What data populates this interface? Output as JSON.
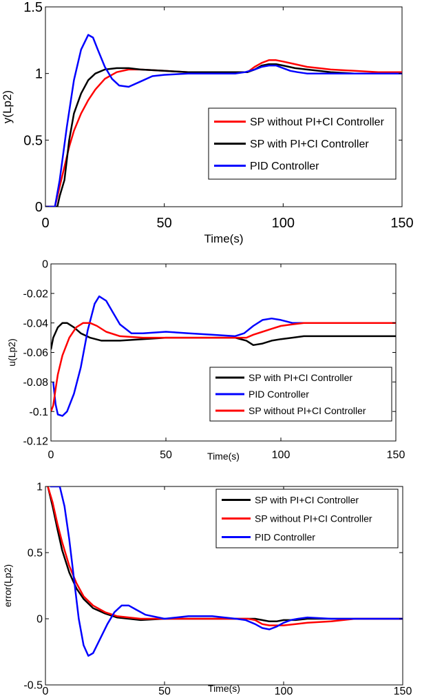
{
  "chart_data": [
    {
      "type": "line",
      "title": "",
      "xlabel": "Time(s)",
      "ylabel": "y(Lp2)",
      "xlim": [
        0,
        150
      ],
      "ylim": [
        0,
        1.5
      ],
      "xticks": [
        "0",
        "50",
        "100",
        "150"
      ],
      "yticks": [
        "0",
        "0.5",
        "1",
        "1.5"
      ],
      "xtick_values": [
        0,
        50,
        100,
        150
      ],
      "ytick_values": [
        0,
        0.5,
        1,
        1.5
      ],
      "grid": false,
      "legend_position": "center-right",
      "series": [
        {
          "name": "SP without PI+CI Controller",
          "color": "#ff0000",
          "x": [
            0,
            4,
            6,
            8,
            10,
            12,
            15,
            18,
            21,
            25,
            30,
            35,
            40,
            50,
            60,
            70,
            80,
            85,
            88,
            91,
            94,
            97,
            100,
            105,
            110,
            115,
            120,
            130,
            140,
            150
          ],
          "y": [
            0,
            0,
            0.15,
            0.3,
            0.45,
            0.57,
            0.7,
            0.8,
            0.88,
            0.96,
            1.01,
            1.03,
            1.03,
            1.02,
            1.01,
            1.01,
            1.01,
            1.01,
            1.05,
            1.08,
            1.1,
            1.1,
            1.09,
            1.07,
            1.05,
            1.04,
            1.03,
            1.02,
            1.01,
            1.01
          ]
        },
        {
          "name": "SP with PI+CI Controller",
          "color": "#000000",
          "x": [
            0,
            5,
            6,
            8,
            10,
            12,
            15,
            18,
            21,
            25,
            30,
            35,
            40,
            50,
            60,
            70,
            80,
            85,
            88,
            91,
            94,
            97,
            100,
            105,
            110,
            115,
            120,
            130,
            140,
            150
          ],
          "y": [
            0,
            0,
            0.08,
            0.2,
            0.5,
            0.7,
            0.85,
            0.95,
            1.0,
            1.03,
            1.04,
            1.04,
            1.03,
            1.02,
            1.01,
            1.01,
            1.01,
            1.01,
            1.03,
            1.06,
            1.07,
            1.07,
            1.06,
            1.04,
            1.03,
            1.02,
            1.01,
            1.0,
            1.0,
            1.0
          ]
        },
        {
          "name": "PID Controller",
          "color": "#0000ff",
          "x": [
            0,
            4,
            6,
            9,
            12,
            15,
            18,
            20,
            22,
            25,
            28,
            31,
            35,
            40,
            45,
            50,
            60,
            70,
            80,
            84,
            88,
            91,
            94,
            97,
            100,
            103,
            106,
            110,
            120,
            130,
            140,
            150
          ],
          "y": [
            0,
            0,
            0.2,
            0.6,
            0.95,
            1.18,
            1.29,
            1.27,
            1.18,
            1.05,
            0.96,
            0.91,
            0.9,
            0.94,
            0.98,
            0.99,
            1.0,
            1.0,
            1.0,
            1.01,
            1.03,
            1.05,
            1.06,
            1.06,
            1.04,
            1.02,
            1.01,
            1.0,
            1.0,
            1.0,
            1.0,
            1.0
          ]
        }
      ]
    },
    {
      "type": "line",
      "title": "",
      "xlabel": "Time(s)",
      "ylabel": "u(Lp2)",
      "xlim": [
        0,
        150
      ],
      "ylim": [
        -0.12,
        0
      ],
      "xticks": [
        "0",
        "50",
        "100",
        "150"
      ],
      "yticks": [
        "-0.12",
        "-0.1",
        "-0.08",
        "-0.06",
        "-0.04",
        "-0.02",
        "0"
      ],
      "xtick_values": [
        0,
        50,
        100,
        150
      ],
      "ytick_values": [
        -0.12,
        -0.1,
        -0.08,
        -0.06,
        -0.04,
        -0.02,
        0
      ],
      "grid": false,
      "legend_position": "bottom-right",
      "series": [
        {
          "name": "SP with PI+CI Controller",
          "color": "#000000",
          "x": [
            0,
            1,
            3,
            5,
            7,
            10,
            13,
            17,
            22,
            30,
            40,
            50,
            60,
            70,
            80,
            85,
            88,
            92,
            96,
            100,
            105,
            110,
            120,
            130,
            140,
            150
          ],
          "y": [
            -0.058,
            -0.05,
            -0.043,
            -0.04,
            -0.04,
            -0.043,
            -0.047,
            -0.05,
            -0.052,
            -0.052,
            -0.051,
            -0.05,
            -0.05,
            -0.05,
            -0.05,
            -0.052,
            -0.055,
            -0.054,
            -0.052,
            -0.051,
            -0.05,
            -0.049,
            -0.049,
            -0.049,
            -0.049,
            -0.049
          ]
        },
        {
          "name": "PID Controller",
          "color": "#0000ff",
          "x": [
            1,
            2,
            3,
            5,
            7,
            10,
            13,
            16,
            19,
            21,
            24,
            27,
            30,
            35,
            40,
            50,
            60,
            70,
            80,
            84,
            88,
            92,
            96,
            100,
            105,
            110,
            120,
            130,
            140,
            150
          ],
          "y": [
            -0.08,
            -0.095,
            -0.102,
            -0.103,
            -0.1,
            -0.088,
            -0.07,
            -0.045,
            -0.027,
            -0.022,
            -0.025,
            -0.033,
            -0.041,
            -0.047,
            -0.047,
            -0.046,
            -0.047,
            -0.048,
            -0.049,
            -0.047,
            -0.042,
            -0.038,
            -0.037,
            -0.038,
            -0.04,
            -0.04,
            -0.04,
            -0.04,
            -0.04,
            -0.04
          ]
        },
        {
          "name": "SP without PI+CI Controller",
          "color": "#ff0000",
          "x": [
            0,
            1,
            2,
            3,
            5,
            8,
            11,
            14,
            17,
            20,
            24,
            30,
            40,
            50,
            60,
            70,
            80,
            85,
            88,
            92,
            96,
            100,
            105,
            110,
            120,
            130,
            140,
            150
          ],
          "y": [
            -0.1,
            -0.096,
            -0.085,
            -0.075,
            -0.062,
            -0.05,
            -0.043,
            -0.04,
            -0.04,
            -0.042,
            -0.046,
            -0.049,
            -0.05,
            -0.05,
            -0.05,
            -0.05,
            -0.05,
            -0.05,
            -0.048,
            -0.046,
            -0.044,
            -0.042,
            -0.041,
            -0.04,
            -0.04,
            -0.04,
            -0.04,
            -0.04
          ]
        }
      ]
    },
    {
      "type": "line",
      "title": "",
      "xlabel": "Time(s)",
      "ylabel": "error(Lp2)",
      "xlim": [
        0,
        150
      ],
      "ylim": [
        -0.5,
        1
      ],
      "xticks": [
        "0",
        "50",
        "100",
        "150"
      ],
      "yticks": [
        "-0.5",
        "0",
        "0.5",
        "1"
      ],
      "xtick_values": [
        0,
        50,
        100,
        150
      ],
      "ytick_values": [
        -0.5,
        0,
        0.5,
        1
      ],
      "grid": false,
      "legend_position": "top-right",
      "series": [
        {
          "name": "SP with PI+CI Controller",
          "color": "#000000",
          "x": [
            1,
            3,
            5,
            7,
            10,
            13,
            16,
            20,
            25,
            30,
            35,
            40,
            50,
            60,
            70,
            80,
            85,
            88,
            91,
            94,
            97,
            100,
            105,
            110,
            120,
            130,
            140,
            150
          ],
          "y": [
            1.0,
            0.85,
            0.68,
            0.52,
            0.35,
            0.23,
            0.15,
            0.08,
            0.04,
            0.01,
            0.0,
            -0.01,
            0.0,
            0.0,
            0.0,
            0.0,
            0.0,
            0.0,
            -0.01,
            -0.02,
            -0.02,
            -0.01,
            -0.01,
            0.0,
            0.0,
            0.0,
            0.0,
            0.0
          ]
        },
        {
          "name": "SP without PI+CI Controller",
          "color": "#ff0000",
          "x": [
            1,
            3,
            5,
            7,
            10,
            13,
            16,
            20,
            25,
            30,
            35,
            40,
            50,
            60,
            70,
            80,
            85,
            88,
            91,
            94,
            97,
            100,
            105,
            110,
            120,
            130,
            140,
            150
          ],
          "y": [
            1.0,
            0.88,
            0.72,
            0.58,
            0.4,
            0.27,
            0.17,
            0.1,
            0.05,
            0.02,
            0.01,
            0.0,
            0.0,
            0.0,
            0.0,
            0.0,
            0.0,
            -0.01,
            -0.04,
            -0.05,
            -0.05,
            -0.05,
            -0.04,
            -0.03,
            -0.02,
            0.0,
            0.0,
            0.0
          ]
        },
        {
          "name": "PID Controller",
          "color": "#0000ff",
          "x": [
            2,
            4,
            6,
            8,
            10,
            12,
            14,
            16,
            18,
            20,
            23,
            26,
            29,
            32,
            35,
            38,
            42,
            50,
            60,
            70,
            80,
            84,
            88,
            91,
            94,
            97,
            100,
            103,
            106,
            110,
            120,
            130,
            140,
            150
          ],
          "y": [
            1.0,
            1.0,
            1.0,
            0.85,
            0.6,
            0.3,
            0.0,
            -0.2,
            -0.28,
            -0.26,
            -0.15,
            -0.04,
            0.05,
            0.1,
            0.1,
            0.07,
            0.03,
            0.0,
            0.02,
            0.02,
            0.0,
            -0.01,
            -0.04,
            -0.07,
            -0.08,
            -0.06,
            -0.03,
            -0.01,
            0.0,
            0.01,
            0.0,
            0.0,
            0.0,
            0.0
          ]
        }
      ]
    }
  ]
}
